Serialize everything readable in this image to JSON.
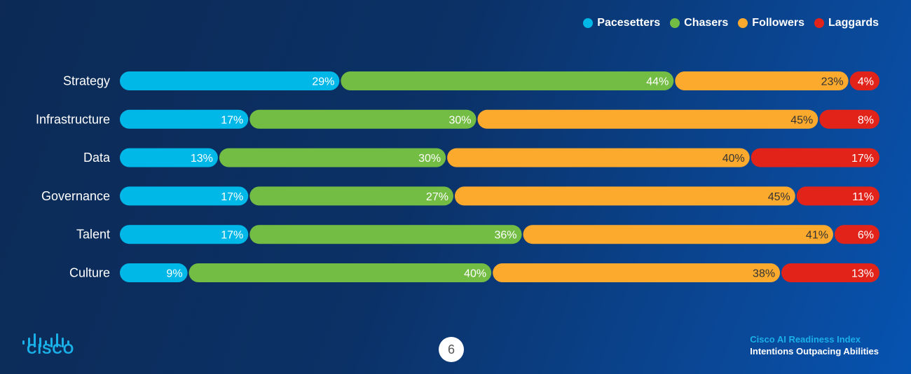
{
  "colors": {
    "pacesetters": "#00b8e8",
    "chasers": "#74bd44",
    "followers": "#fcaa2e",
    "laggards": "#e2231a"
  },
  "legend": [
    {
      "name": "Pacesetters",
      "color": "#00b8e8"
    },
    {
      "name": "Chasers",
      "color": "#74bd44"
    },
    {
      "name": "Followers",
      "color": "#fcaa2e"
    },
    {
      "name": "Laggards",
      "color": "#e2231a"
    }
  ],
  "chart_data": {
    "type": "bar",
    "orientation": "horizontal",
    "stacked": true,
    "title": "",
    "xlabel": "",
    "ylabel": "",
    "categories": [
      "Strategy",
      "Infrastructure",
      "Data",
      "Governance",
      "Talent",
      "Culture"
    ],
    "series": [
      {
        "name": "Pacesetters",
        "values": [
          29,
          17,
          13,
          17,
          17,
          9
        ]
      },
      {
        "name": "Chasers",
        "values": [
          44,
          30,
          30,
          27,
          36,
          40
        ]
      },
      {
        "name": "Followers",
        "values": [
          23,
          45,
          40,
          45,
          41,
          38
        ]
      },
      {
        "name": "Laggards",
        "values": [
          4,
          8,
          17,
          11,
          6,
          13
        ]
      }
    ],
    "value_suffix": "%",
    "legend_position": "top-right",
    "xlim": [
      0,
      100
    ]
  },
  "footer": {
    "logo_text": "CISCO",
    "page_number": "6",
    "report_title": "Cisco AI Readiness Index",
    "report_subtitle": "Intentions Outpacing Abilities"
  }
}
